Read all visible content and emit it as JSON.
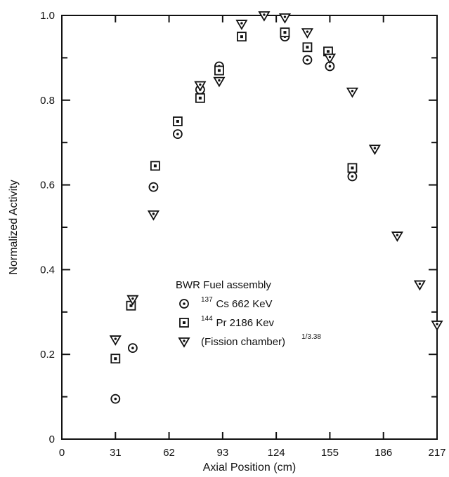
{
  "chart_data": {
    "type": "scatter",
    "xlabel": "Axial Position (cm)",
    "ylabel": "Normalized Activity",
    "xlim": [
      0,
      217
    ],
    "ylim": [
      0,
      1.0
    ],
    "xticks": [
      0,
      31,
      62,
      93,
      124,
      155,
      186,
      217
    ],
    "xtick_labels": [
      "0",
      "31",
      "62",
      "93",
      "124",
      "155",
      "186",
      "217"
    ],
    "yticks": [
      0,
      0.2,
      0.4,
      0.6,
      0.8,
      1.0
    ],
    "ytick_labels": [
      "0",
      "0.2",
      "0.4",
      "0.6",
      "0.8",
      "1.0"
    ],
    "grid": false,
    "legend": {
      "title": "BWR Fuel assembly",
      "position": "lower-center",
      "entries": [
        {
          "marker": "circle-dot",
          "sup": "137",
          "text": "Cs 662 KeV"
        },
        {
          "marker": "square-dot",
          "sup": "144",
          "text": "Pr 2186 Kev"
        },
        {
          "marker": "triangle-dot",
          "sup": "",
          "text": "(Fission chamber)",
          "exponent": "1/3.38"
        }
      ]
    },
    "series": [
      {
        "name": "137Cs 662 KeV",
        "marker": "circle-dot",
        "points": [
          [
            31,
            0.095
          ],
          [
            41,
            0.215
          ],
          [
            53,
            0.595
          ],
          [
            67,
            0.72
          ],
          [
            80,
            0.825
          ],
          [
            91,
            0.88
          ],
          [
            129,
            0.95
          ],
          [
            142,
            0.895
          ],
          [
            155,
            0.88
          ],
          [
            168,
            0.62
          ]
        ]
      },
      {
        "name": "144Pr 2186 Kev",
        "marker": "square-dot",
        "points": [
          [
            31,
            0.19
          ],
          [
            40,
            0.315
          ],
          [
            54,
            0.645
          ],
          [
            67,
            0.75
          ],
          [
            80,
            0.805
          ],
          [
            91,
            0.87
          ],
          [
            104,
            0.95
          ],
          [
            129,
            0.96
          ],
          [
            142,
            0.925
          ],
          [
            154,
            0.915
          ],
          [
            168,
            0.64
          ]
        ]
      },
      {
        "name": "(Fission chamber)1/3.38",
        "marker": "triangle-dot",
        "points": [
          [
            31,
            0.235
          ],
          [
            41,
            0.33
          ],
          [
            53,
            0.53
          ],
          [
            80,
            0.835
          ],
          [
            91,
            0.845
          ],
          [
            104,
            0.98
          ],
          [
            117,
            1.0
          ],
          [
            129,
            0.995
          ],
          [
            142,
            0.96
          ],
          [
            155,
            0.9
          ],
          [
            168,
            0.82
          ],
          [
            181,
            0.685
          ],
          [
            194,
            0.48
          ],
          [
            207,
            0.365
          ],
          [
            217,
            0.27
          ]
        ]
      }
    ]
  }
}
